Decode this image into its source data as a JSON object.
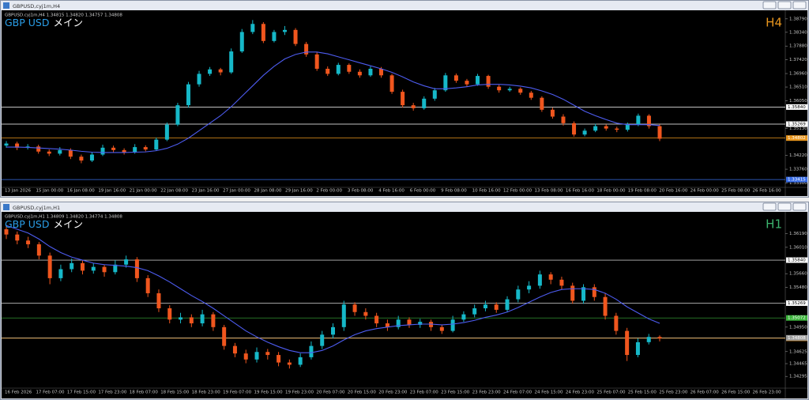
{
  "windows": [
    {
      "title": "GBPUSD,cyj1m,H4",
      "info": "GBPUSD.cyj1m,H4  1.34815 1.34820 1.34757 1.34808",
      "symbol": "GBP USD",
      "label": "メイン",
      "timeframe": "H4",
      "timeframe_color": "#e8961e",
      "chart": {
        "type": "candlestick",
        "up_color": "#16b8c8",
        "down_color": "#f0561e",
        "ma_color": "#4d5cf0",
        "ylim": [
          1.3318,
          1.3905
        ],
        "yticks": [
          {
            "value": 1.3879,
            "label": "1.38790"
          },
          {
            "value": 1.3834,
            "label": "1.38340"
          },
          {
            "value": 1.3788,
            "label": "1.37880"
          },
          {
            "value": 1.3742,
            "label": "1.37420"
          },
          {
            "value": 1.3696,
            "label": "1.36960"
          },
          {
            "value": 1.3651,
            "label": "1.36510"
          },
          {
            "value": 1.3605,
            "label": "1.36050"
          },
          {
            "value": 1.3513,
            "label": "1.35130"
          },
          {
            "value": 1.3422,
            "label": "1.34220"
          },
          {
            "value": 1.3376,
            "label": "1.33760"
          },
          {
            "value": 1.333,
            "label": "1.33300"
          }
        ],
        "levels": [
          {
            "value": 1.3584,
            "label": "1.35840",
            "color": "#ffffff"
          },
          {
            "value": 1.35269,
            "label": "1.35269",
            "color": "#ffffff"
          },
          {
            "value": 1.34802,
            "label": "1.34802",
            "color": "#e8961e"
          },
          {
            "value": 1.33415,
            "label": "1.33415",
            "color": "#3a6ee8"
          }
        ],
        "x_labels": [
          "13 Jan 2026",
          "15 Jan 00:00",
          "16 Jan 08:00",
          "19 Jan 16:00",
          "21 Jan 00:00",
          "22 Jan 08:00",
          "23 Jan 16:00",
          "27 Jan 00:00",
          "28 Jan 08:00",
          "29 Jan 16:00",
          "2 Feb 00:00",
          "3 Feb 08:00",
          "4 Feb 16:00",
          "6 Feb 00:00",
          "9 Feb 08:00",
          "10 Feb 16:00",
          "12 Feb 00:00",
          "13 Feb 08:00",
          "16 Feb 16:00",
          "18 Feb 00:00",
          "19 Feb 08:00",
          "20 Feb 16:00",
          "24 Feb 00:00",
          "25 Feb 08:00",
          "26 Feb 16:00"
        ],
        "candles": [
          [
            1.3455,
            1.347,
            1.3448,
            1.3462
          ],
          [
            1.3462,
            1.3468,
            1.344,
            1.3448
          ],
          [
            1.3448,
            1.346,
            1.3442,
            1.3452
          ],
          [
            1.3452,
            1.3458,
            1.3428,
            1.3435
          ],
          [
            1.3435,
            1.3442,
            1.342,
            1.3428
          ],
          [
            1.3428,
            1.345,
            1.3422,
            1.344
          ],
          [
            1.344,
            1.3446,
            1.341,
            1.3418
          ],
          [
            1.3418,
            1.3425,
            1.3396,
            1.3405
          ],
          [
            1.3405,
            1.3432,
            1.34,
            1.3425
          ],
          [
            1.3425,
            1.3458,
            1.342,
            1.3448
          ],
          [
            1.3448,
            1.3455,
            1.3432,
            1.344
          ],
          [
            1.344,
            1.3446,
            1.3425,
            1.3432
          ],
          [
            1.3432,
            1.346,
            1.3428,
            1.345
          ],
          [
            1.345,
            1.3456,
            1.3436,
            1.3442
          ],
          [
            1.3442,
            1.3482,
            1.3438,
            1.3475
          ],
          [
            1.3475,
            1.3532,
            1.347,
            1.3525
          ],
          [
            1.3525,
            1.3598,
            1.352,
            1.359
          ],
          [
            1.359,
            1.3668,
            1.3582,
            1.366
          ],
          [
            1.366,
            1.3705,
            1.3652,
            1.3695
          ],
          [
            1.3695,
            1.3718,
            1.3688,
            1.371
          ],
          [
            1.371,
            1.3715,
            1.369,
            1.37
          ],
          [
            1.37,
            1.378,
            1.3695,
            1.377
          ],
          [
            1.377,
            1.3845,
            1.3765,
            1.3835
          ],
          [
            1.3835,
            1.3875,
            1.3828,
            1.3862
          ],
          [
            1.3862,
            1.3868,
            1.3798,
            1.3805
          ],
          [
            1.3805,
            1.3842,
            1.38,
            1.3835
          ],
          [
            1.3835,
            1.3855,
            1.3825,
            1.3842
          ],
          [
            1.3842,
            1.3848,
            1.3788,
            1.3795
          ],
          [
            1.3795,
            1.3802,
            1.3752,
            1.376
          ],
          [
            1.376,
            1.3768,
            1.3705,
            1.3712
          ],
          [
            1.3712,
            1.372,
            1.3688,
            1.3695
          ],
          [
            1.3695,
            1.3732,
            1.369,
            1.3725
          ],
          [
            1.3725,
            1.373,
            1.3695,
            1.3702
          ],
          [
            1.3702,
            1.371,
            1.3682,
            1.369
          ],
          [
            1.369,
            1.372,
            1.3685,
            1.3712
          ],
          [
            1.3712,
            1.3718,
            1.3682,
            1.369
          ],
          [
            1.369,
            1.3695,
            1.3628,
            1.3635
          ],
          [
            1.3635,
            1.3642,
            1.3582,
            1.359
          ],
          [
            1.359,
            1.3598,
            1.3572,
            1.358
          ],
          [
            1.358,
            1.362,
            1.3575,
            1.3612
          ],
          [
            1.3612,
            1.3648,
            1.3605,
            1.364
          ],
          [
            1.364,
            1.3698,
            1.3635,
            1.369
          ],
          [
            1.369,
            1.3696,
            1.3665,
            1.3672
          ],
          [
            1.3672,
            1.3678,
            1.3652,
            1.366
          ],
          [
            1.366,
            1.3695,
            1.3655,
            1.3688
          ],
          [
            1.3688,
            1.3692,
            1.3645,
            1.3652
          ],
          [
            1.3652,
            1.3658,
            1.3632,
            1.364
          ],
          [
            1.364,
            1.3652,
            1.3635,
            1.3645
          ],
          [
            1.3645,
            1.365,
            1.3625,
            1.3632
          ],
          [
            1.3632,
            1.3638,
            1.3608,
            1.3615
          ],
          [
            1.3615,
            1.362,
            1.3568,
            1.3575
          ],
          [
            1.3575,
            1.3582,
            1.3545,
            1.3552
          ],
          [
            1.3552,
            1.356,
            1.3522,
            1.353
          ],
          [
            1.353,
            1.3536,
            1.3485,
            1.3492
          ],
          [
            1.3492,
            1.3512,
            1.3486,
            1.3505
          ],
          [
            1.3505,
            1.3528,
            1.35,
            1.352
          ],
          [
            1.352,
            1.3526,
            1.3505,
            1.3512
          ],
          [
            1.3512,
            1.3518,
            1.35,
            1.3508
          ],
          [
            1.3508,
            1.3532,
            1.3502,
            1.3525
          ],
          [
            1.3525,
            1.3562,
            1.352,
            1.3555
          ],
          [
            1.3555,
            1.356,
            1.3512,
            1.352
          ],
          [
            1.352,
            1.3526,
            1.347,
            1.3478
          ]
        ],
        "ma": [
          1.345,
          1.345,
          1.3449,
          1.3447,
          1.3445,
          1.3443,
          1.344,
          1.3436,
          1.3433,
          1.3432,
          1.3432,
          1.3432,
          1.3433,
          1.3434,
          1.3438,
          1.3446,
          1.346,
          1.348,
          1.3505,
          1.353,
          1.3555,
          1.3585,
          1.362,
          1.3655,
          1.369,
          1.372,
          1.3745,
          1.376,
          1.3768,
          1.3768,
          1.3762,
          1.3752,
          1.3742,
          1.3732,
          1.3722,
          1.3712,
          1.37,
          1.3685,
          1.3668,
          1.3655,
          1.3645,
          1.3645,
          1.3648,
          1.3652,
          1.3658,
          1.366,
          1.366,
          1.3658,
          1.3654,
          1.3648,
          1.3638,
          1.3626,
          1.361,
          1.359,
          1.357,
          1.3555,
          1.3542,
          1.353,
          1.3525,
          1.3525,
          1.3525,
          1.3522
        ]
      }
    },
    {
      "title": "GBPUSD,cyj1m,H1",
      "info": "GBPUSD.cyj1m,H1  1.34809 1.34820 1.34774 1.34808",
      "symbol": "GBP USD",
      "label": "メイン",
      "timeframe": "H1",
      "timeframe_color": "#3cb46e",
      "chart": {
        "type": "candlestick",
        "up_color": "#16b8c8",
        "down_color": "#f0561e",
        "ma_color": "#4d5cf0",
        "ylim": [
          1.3415,
          1.3646
        ],
        "yticks": [
          {
            "value": 1.3619,
            "label": "1.36190"
          },
          {
            "value": 1.3601,
            "label": "1.36010"
          },
          {
            "value": 1.3566,
            "label": "1.35660"
          },
          {
            "value": 1.3548,
            "label": "1.35480"
          },
          {
            "value": 1.3495,
            "label": "1.34950"
          },
          {
            "value": 1.34625,
            "label": "1.34625"
          },
          {
            "value": 1.34465,
            "label": "1.34465"
          },
          {
            "value": 1.34295,
            "label": "1.34295"
          }
        ],
        "levels": [
          {
            "value": 1.3584,
            "label": "1.35840",
            "color": "#ffffff"
          },
          {
            "value": 1.35269,
            "label": "1.35269",
            "color": "#ffffff"
          },
          {
            "value": 1.35072,
            "label": "1.35072",
            "color": "#3cb43c"
          },
          {
            "value": 1.34802,
            "label": "1.34802",
            "color": "#e8961e"
          },
          {
            "value": 1.34808,
            "label": "1.34808",
            "color": "#a0a0a0"
          }
        ],
        "x_labels": [
          "16 Feb 2026",
          "17 Feb 07:00",
          "17 Feb 15:00",
          "17 Feb 23:00",
          "18 Feb 07:00",
          "18 Feb 15:00",
          "18 Feb 23:00",
          "19 Feb 07:00",
          "19 Feb 15:00",
          "19 Feb 23:00",
          "20 Feb 07:00",
          "20 Feb 15:00",
          "20 Feb 23:00",
          "23 Feb 07:00",
          "23 Feb 15:00",
          "23 Feb 23:00",
          "24 Feb 07:00",
          "24 Feb 15:00",
          "24 Feb 23:00",
          "25 Feb 07:00",
          "25 Feb 15:00",
          "25 Feb 23:00",
          "26 Feb 07:00",
          "26 Feb 15:00",
          "26 Feb 23:00"
        ],
        "candles": [
          [
            1.3625,
            1.363,
            1.3612,
            1.3618
          ],
          [
            1.3618,
            1.3622,
            1.3605,
            1.361
          ],
          [
            1.361,
            1.3615,
            1.36,
            1.3605
          ],
          [
            1.3605,
            1.3608,
            1.3585,
            1.359
          ],
          [
            1.359,
            1.3594,
            1.3552,
            1.356
          ],
          [
            1.356,
            1.3578,
            1.3556,
            1.3572
          ],
          [
            1.3572,
            1.3586,
            1.3568,
            1.358
          ],
          [
            1.358,
            1.3584,
            1.3565,
            1.357
          ],
          [
            1.357,
            1.358,
            1.3566,
            1.3575
          ],
          [
            1.3575,
            1.3578,
            1.3562,
            1.3568
          ],
          [
            1.3568,
            1.3584,
            1.3565,
            1.3578
          ],
          [
            1.3578,
            1.359,
            1.3574,
            1.3585
          ],
          [
            1.3585,
            1.3588,
            1.3555,
            1.356
          ],
          [
            1.356,
            1.3564,
            1.3535,
            1.354
          ],
          [
            1.354,
            1.3545,
            1.3515,
            1.352
          ],
          [
            1.352,
            1.3524,
            1.35,
            1.3505
          ],
          [
            1.3505,
            1.3514,
            1.35,
            1.3508
          ],
          [
            1.3508,
            1.3512,
            1.3495,
            1.35
          ],
          [
            1.35,
            1.3518,
            1.3496,
            1.3512
          ],
          [
            1.3512,
            1.3515,
            1.349,
            1.3495
          ],
          [
            1.3495,
            1.3498,
            1.3465,
            1.347
          ],
          [
            1.347,
            1.3474,
            1.3455,
            1.346
          ],
          [
            1.346,
            1.3465,
            1.3447,
            1.3452
          ],
          [
            1.3452,
            1.3468,
            1.3448,
            1.3462
          ],
          [
            1.3462,
            1.3466,
            1.3452,
            1.3458
          ],
          [
            1.3458,
            1.3462,
            1.3443,
            1.3448
          ],
          [
            1.3448,
            1.3452,
            1.344,
            1.3445
          ],
          [
            1.3445,
            1.346,
            1.3442,
            1.3455
          ],
          [
            1.3455,
            1.3476,
            1.3452,
            1.347
          ],
          [
            1.347,
            1.349,
            1.3466,
            1.3485
          ],
          [
            1.3485,
            1.35,
            1.348,
            1.3495
          ],
          [
            1.3495,
            1.353,
            1.349,
            1.3525
          ],
          [
            1.3525,
            1.3528,
            1.351,
            1.3515
          ],
          [
            1.3515,
            1.352,
            1.3505,
            1.351
          ],
          [
            1.351,
            1.3514,
            1.3495,
            1.35
          ],
          [
            1.35,
            1.3505,
            1.349,
            1.3495
          ],
          [
            1.3495,
            1.351,
            1.3492,
            1.3505
          ],
          [
            1.3505,
            1.3508,
            1.3494,
            1.3498
          ],
          [
            1.3498,
            1.3506,
            1.3494,
            1.3502
          ],
          [
            1.3502,
            1.3505,
            1.349,
            1.3495
          ],
          [
            1.3495,
            1.3498,
            1.3486,
            1.349
          ],
          [
            1.349,
            1.351,
            1.3488,
            1.3505
          ],
          [
            1.3505,
            1.3516,
            1.3502,
            1.3512
          ],
          [
            1.3512,
            1.3525,
            1.3508,
            1.352
          ],
          [
            1.352,
            1.353,
            1.3516,
            1.3525
          ],
          [
            1.3525,
            1.3528,
            1.3514,
            1.3518
          ],
          [
            1.3518,
            1.3536,
            1.3515,
            1.3532
          ],
          [
            1.3532,
            1.355,
            1.3528,
            1.3545
          ],
          [
            1.3545,
            1.3556,
            1.354,
            1.355
          ],
          [
            1.355,
            1.357,
            1.3546,
            1.3565
          ],
          [
            1.3565,
            1.3568,
            1.3552,
            1.3558
          ],
          [
            1.3558,
            1.3562,
            1.3545,
            1.355
          ],
          [
            1.355,
            1.3554,
            1.3526,
            1.353
          ],
          [
            1.353,
            1.3552,
            1.3526,
            1.3548
          ],
          [
            1.3548,
            1.3552,
            1.353,
            1.3535
          ],
          [
            1.3535,
            1.354,
            1.3505,
            1.351
          ],
          [
            1.351,
            1.3514,
            1.3485,
            1.349
          ],
          [
            1.349,
            1.3494,
            1.345,
            1.3458
          ],
          [
            1.3458,
            1.348,
            1.3455,
            1.3475
          ],
          [
            1.3475,
            1.3486,
            1.3472,
            1.3482
          ],
          [
            1.3482,
            1.3484,
            1.3476,
            1.348
          ]
        ],
        "ma": [
          1.363,
          1.3625,
          1.362,
          1.3612,
          1.3602,
          1.3594,
          1.3588,
          1.3584,
          1.358,
          1.3578,
          1.3577,
          1.3576,
          1.3574,
          1.357,
          1.3563,
          1.3555,
          1.3546,
          1.3537,
          1.3529,
          1.352,
          1.351,
          1.35,
          1.349,
          1.3482,
          1.3475,
          1.3469,
          1.3464,
          1.3461,
          1.3461,
          1.3464,
          1.347,
          1.3478,
          1.3485,
          1.349,
          1.3493,
          1.3495,
          1.3497,
          1.3498,
          1.3499,
          1.3499,
          1.3498,
          1.3499,
          1.3501,
          1.3504,
          1.3508,
          1.3511,
          1.3515,
          1.3521,
          1.3528,
          1.3535,
          1.3541,
          1.3545,
          1.3546,
          1.3546,
          1.3545,
          1.354,
          1.3532,
          1.3522,
          1.3514,
          1.3506,
          1.35
        ]
      }
    }
  ]
}
